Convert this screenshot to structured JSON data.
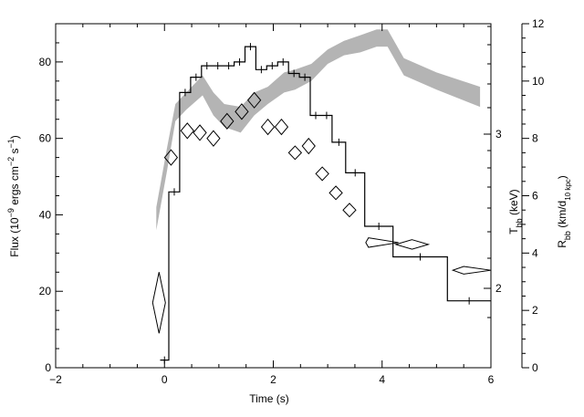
{
  "chart_data": {
    "type": "line",
    "xaxis": {
      "label": "Time (s)",
      "range": [
        -2,
        6
      ],
      "ticks": [
        -2,
        0,
        2,
        4,
        6
      ]
    },
    "yaxis_left": {
      "label": "Flux (10^-9 ergs cm^-2 s^-1)",
      "range": [
        0,
        90
      ],
      "ticks": [
        0,
        20,
        40,
        60,
        80
      ]
    },
    "yaxis_temperature": {
      "label": "T_bb (keV)",
      "ticks": [
        2,
        3
      ]
    },
    "yaxis_radius": {
      "label": "R_bb (km/d_10 kpc)",
      "range": [
        0,
        12
      ],
      "ticks": [
        0,
        2,
        4,
        6,
        8,
        10,
        12
      ]
    },
    "flux_histogram": {
      "bins": [
        [
          -0.08,
          0.08,
          2
        ],
        [
          0.08,
          0.28,
          46
        ],
        [
          0.28,
          0.48,
          72
        ],
        [
          0.48,
          0.68,
          76
        ],
        [
          0.68,
          0.88,
          79
        ],
        [
          0.88,
          1.08,
          79
        ],
        [
          1.08,
          1.28,
          79
        ],
        [
          1.28,
          1.48,
          80
        ],
        [
          1.48,
          1.68,
          84
        ],
        [
          1.68,
          1.88,
          78
        ],
        [
          1.88,
          2.08,
          79
        ],
        [
          2.08,
          2.28,
          80
        ],
        [
          2.28,
          2.48,
          77
        ],
        [
          2.48,
          2.68,
          76
        ],
        [
          2.68,
          2.88,
          66
        ],
        [
          2.88,
          3.08,
          66
        ],
        [
          3.08,
          3.33,
          59
        ],
        [
          3.33,
          3.68,
          51
        ],
        [
          3.68,
          4.2,
          37
        ],
        [
          4.2,
          5.2,
          29
        ],
        [
          5.2,
          6.0,
          17.5
        ]
      ]
    },
    "temperature_points": [
      {
        "t": -0.1,
        "f_lo": 9,
        "f_hi": 25
      },
      {
        "t": 0.12,
        "f_lo": 53,
        "f_hi": 57
      },
      {
        "t": 0.42,
        "f_lo": 60,
        "f_hi": 64
      },
      {
        "t": 0.65,
        "f_lo": 59.5,
        "f_hi": 63.5
      },
      {
        "t": 0.9,
        "f_lo": 58,
        "f_hi": 62
      },
      {
        "t": 1.15,
        "f_lo": 62.5,
        "f_hi": 66.5
      },
      {
        "t": 1.42,
        "f_lo": 65,
        "f_hi": 69
      },
      {
        "t": 1.65,
        "f_lo": 68,
        "f_hi": 72
      },
      {
        "t": 1.9,
        "f_lo": 61,
        "f_hi": 65
      },
      {
        "t": 2.15,
        "f_lo": 61,
        "f_hi": 65
      },
      {
        "t": 2.4,
        "f_lo": 54.5,
        "f_hi": 58
      },
      {
        "t": 2.65,
        "f_lo": 56,
        "f_hi": 60
      },
      {
        "t": 2.9,
        "f_lo": 49,
        "f_hi": 52.5
      },
      {
        "t": 3.15,
        "f_lo": 44,
        "f_hi": 47.5
      },
      {
        "t": 3.4,
        "f_lo": 39.5,
        "f_hi": 43
      },
      {
        "t": 3.75,
        "t_lo": 3.7,
        "t_hi": 4.3,
        "f_lo": 31.5,
        "f_hi": 34
      },
      {
        "t": 4.55,
        "t_lo": 4.25,
        "t_hi": 4.85,
        "f_lo": 31,
        "f_hi": 33.5
      },
      {
        "t": 5.5,
        "t_lo": 5.3,
        "t_hi": 6.0,
        "f_lo": 24.5,
        "f_hi": 26.5
      }
    ],
    "radius_band": {
      "t": [
        -0.15,
        0.05,
        0.2,
        0.4,
        0.7,
        0.9,
        1.1,
        1.4,
        1.65,
        1.9,
        2.2,
        2.4,
        2.7,
        3.0,
        3.3,
        3.6,
        3.9,
        4.1,
        4.4,
        5.0,
        5.8
      ],
      "lo": [
        4.8,
        6.9,
        8.6,
        9.0,
        9.5,
        8.8,
        8.4,
        8.2,
        8.8,
        9.2,
        9.6,
        9.7,
        10.0,
        10.6,
        10.9,
        11.0,
        11.2,
        11.2,
        10.2,
        9.7,
        9.1
      ],
      "hi": [
        5.6,
        7.7,
        9.2,
        9.6,
        10.2,
        9.6,
        9.2,
        9.1,
        9.6,
        9.8,
        10.3,
        10.4,
        10.6,
        11.1,
        11.4,
        11.6,
        11.8,
        11.8,
        10.8,
        10.3,
        9.8
      ]
    }
  }
}
